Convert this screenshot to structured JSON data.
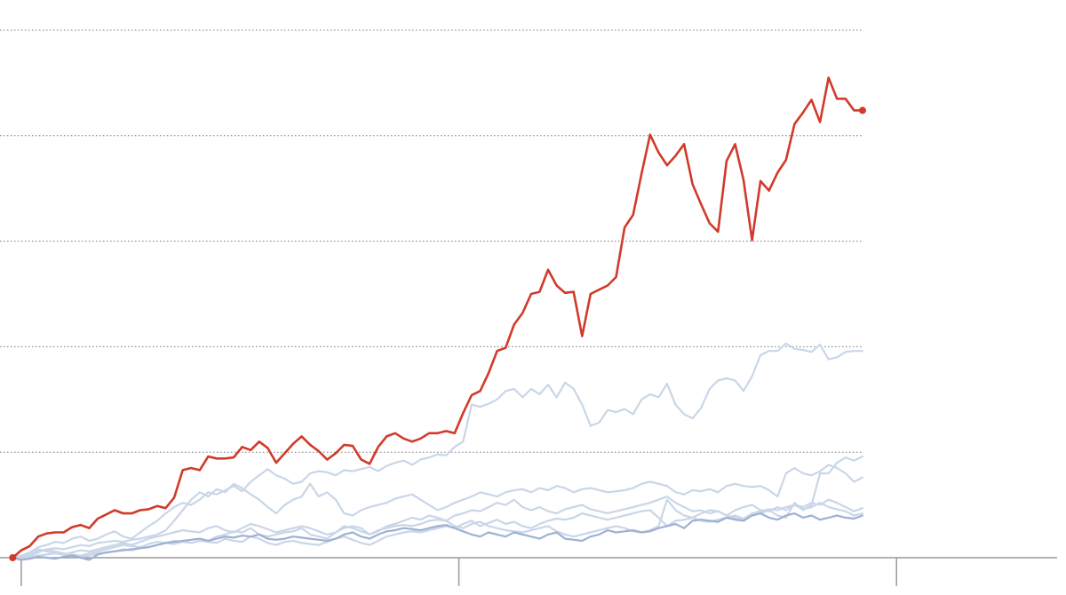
{
  "chart_data": {
    "type": "line",
    "x": [
      0,
      1,
      2,
      3,
      4,
      5,
      6,
      7,
      8,
      9,
      10,
      11,
      12,
      13,
      14,
      15,
      16,
      17,
      18,
      19,
      20,
      21,
      22,
      23,
      24,
      25,
      26,
      27,
      28,
      29,
      30,
      31,
      32,
      33,
      34,
      35,
      36,
      37,
      38,
      39,
      40,
      41,
      42,
      43,
      44,
      45,
      46,
      47,
      48,
      49,
      50,
      51,
      52,
      53,
      54,
      55,
      56,
      57,
      58,
      59,
      60,
      61,
      62,
      63,
      64,
      65,
      66,
      67,
      68,
      69,
      70,
      71,
      72,
      73,
      74,
      75,
      76,
      77,
      78,
      79,
      80,
      81,
      82,
      83,
      84,
      85,
      86,
      87,
      88,
      89,
      90,
      91,
      92,
      93,
      94,
      95,
      96,
      97,
      98,
      99,
      100
    ],
    "xlim": [
      -1.5,
      122.9
    ],
    "xticks": [
      1,
      52.5,
      104
    ],
    "ylim": [
      0,
      500
    ],
    "yticks": [
      0,
      100,
      200,
      300,
      400,
      500
    ],
    "grid": true,
    "series": [
      {
        "color": "#c9d6e8",
        "values": [
          0,
          2,
          5,
          10,
          12,
          15,
          14,
          18,
          20,
          16,
          18,
          22,
          25,
          20,
          18,
          24,
          30,
          35,
          42,
          48,
          52,
          50,
          55,
          62,
          60,
          64,
          68,
          63,
          72,
          78,
          84,
          78,
          75,
          70,
          72,
          80,
          82,
          81,
          78,
          83,
          82,
          84,
          86,
          82,
          87,
          90,
          92,
          88,
          93,
          95,
          98,
          97,
          105,
          110,
          145,
          143,
          146,
          150,
          158,
          160,
          152,
          160,
          155,
          164,
          152,
          166,
          160,
          145,
          125,
          128,
          140,
          138,
          141,
          136,
          150,
          155,
          152,
          165,
          145,
          136,
          132,
          142,
          160,
          168,
          170,
          168,
          158,
          172,
          192,
          196,
          196,
          203,
          198,
          197,
          195,
          202,
          188,
          190,
          195,
          196,
          196
        ]
      },
      {
        "color": "#c9d6e8",
        "values": [
          0,
          1,
          3,
          6,
          8,
          9,
          8,
          10,
          12,
          11,
          14,
          15,
          16,
          15,
          17,
          18,
          20,
          22,
          26,
          35,
          45,
          55,
          62,
          58,
          65,
          62,
          70,
          66,
          60,
          55,
          48,
          42,
          50,
          55,
          58,
          70,
          58,
          62,
          55,
          42,
          40,
          45,
          48,
          50,
          52,
          56,
          58,
          60,
          55,
          50,
          45,
          48,
          52,
          55,
          58,
          62,
          60,
          58,
          62,
          64,
          65,
          62,
          66,
          64,
          68,
          66,
          62,
          65,
          66,
          64,
          62,
          63,
          64,
          66,
          70,
          72,
          70,
          68,
          62,
          60,
          64,
          63,
          65,
          62,
          68,
          70,
          68,
          67,
          68,
          64,
          58,
          80,
          85,
          80,
          78,
          82,
          88,
          85,
          80,
          72,
          76
        ]
      },
      {
        "color": "#c9d6e8",
        "values": [
          0,
          2,
          5,
          8,
          6,
          4,
          3,
          5,
          7,
          6,
          8,
          10,
          12,
          14,
          12,
          15,
          18,
          20,
          22,
          24,
          26,
          25,
          24,
          28,
          30,
          26,
          24,
          28,
          32,
          30,
          27,
          24,
          26,
          28,
          30,
          28,
          25,
          22,
          24,
          30,
          28,
          25,
          22,
          26,
          28,
          30,
          31,
          30,
          32,
          35,
          36,
          35,
          30,
          28,
          32,
          34,
          30,
          28,
          26,
          25,
          24,
          26,
          28,
          30,
          25,
          22,
          20,
          22,
          24,
          26,
          28,
          30,
          28,
          25,
          24,
          26,
          30,
          55,
          45,
          40,
          38,
          42,
          45,
          44,
          40,
          38,
          36,
          40,
          42,
          45,
          40,
          38,
          52,
          45,
          50,
          80,
          80,
          90,
          95,
          92,
          96
        ]
      },
      {
        "color": "#c9d6e8",
        "values": [
          0,
          -2,
          2,
          5,
          8,
          6,
          4,
          3,
          2,
          4,
          6,
          8,
          10,
          12,
          11,
          10,
          13,
          15,
          14,
          16,
          15,
          17,
          18,
          16,
          20,
          22,
          25,
          24,
          28,
          22,
          20,
          22,
          24,
          25,
          28,
          22,
          20,
          18,
          24,
          28,
          30,
          28,
          22,
          25,
          30,
          32,
          35,
          38,
          36,
          40,
          38,
          35,
          40,
          42,
          45,
          44,
          48,
          52,
          50,
          55,
          48,
          45,
          48,
          44,
          42,
          46,
          48,
          50,
          46,
          44,
          42,
          44,
          46,
          48,
          50,
          52,
          55,
          58,
          52,
          48,
          44,
          45,
          42,
          44,
          40,
          45,
          48,
          50,
          45,
          44,
          48,
          45,
          50,
          48,
          52,
          50,
          55,
          52,
          48,
          44,
          47
        ]
      },
      {
        "color": "#c9d6e8",
        "values": [
          0,
          -1,
          1,
          2,
          3,
          4,
          3,
          2,
          1,
          2,
          4,
          5,
          6,
          8,
          7,
          9,
          10,
          12,
          14,
          13,
          15,
          14,
          16,
          15,
          14,
          18,
          16,
          15,
          20,
          18,
          14,
          12,
          15,
          16,
          14,
          13,
          12,
          15,
          18,
          20,
          17,
          14,
          12,
          16,
          20,
          22,
          24,
          25,
          24,
          26,
          28,
          30,
          28,
          32,
          35,
          30,
          33,
          36,
          32,
          34,
          30,
          28,
          32,
          35,
          37,
          36,
          38,
          42,
          40,
          38,
          36,
          38,
          40,
          42,
          44,
          45,
          38,
          30,
          35,
          36,
          38,
          35,
          34,
          36,
          38,
          40,
          37,
          42,
          44,
          46,
          45,
          48,
          50,
          46,
          48,
          52,
          48,
          46,
          44,
          40,
          42
        ]
      },
      {
        "color": "#9fb1d3",
        "values": [
          0,
          -2,
          -1,
          1,
          0,
          -1,
          1,
          2,
          0,
          -2,
          3,
          5,
          6,
          7,
          8,
          9,
          10,
          12,
          14,
          15,
          16,
          17,
          18,
          16,
          18,
          20,
          19,
          21,
          20,
          22,
          18,
          17,
          18,
          20,
          19,
          18,
          17,
          16,
          18,
          22,
          24,
          20,
          18,
          22,
          25,
          26,
          28,
          27,
          26,
          28,
          30,
          31,
          28,
          25,
          22,
          20,
          24,
          22,
          20,
          24,
          22,
          20,
          18,
          22,
          24,
          18,
          17,
          16,
          20,
          22,
          26,
          24,
          25,
          26,
          24,
          25,
          28,
          30,
          32,
          28,
          35,
          36,
          35,
          34,
          38,
          36,
          35,
          40,
          42,
          38,
          36,
          40,
          42,
          38,
          40,
          36,
          38,
          40,
          38,
          37,
          40
        ]
      },
      {
        "color": "#d13a2b",
        "values": [
          0,
          7,
          11,
          20,
          23,
          24,
          24,
          29,
          31,
          28,
          37,
          41,
          45,
          42,
          42,
          45,
          46,
          49,
          47,
          57,
          83,
          85,
          83,
          96,
          94,
          94,
          95,
          105,
          102,
          110,
          104,
          90,
          99,
          108,
          115,
          107,
          101,
          93,
          99,
          107,
          106,
          93,
          89,
          105,
          115,
          118,
          113,
          110,
          113,
          118,
          118,
          120,
          118,
          137,
          154,
          158,
          175,
          196,
          199,
          221,
          232,
          250,
          252,
          273,
          258,
          251,
          252,
          210,
          250,
          254,
          258,
          266,
          313,
          325,
          364,
          401,
          384,
          372,
          381,
          392,
          354,
          335,
          317,
          309,
          376,
          392,
          358,
          301,
          357,
          348,
          365,
          377,
          411,
          422,
          434,
          413,
          455,
          435,
          435,
          424,
          424
        ]
      }
    ]
  }
}
